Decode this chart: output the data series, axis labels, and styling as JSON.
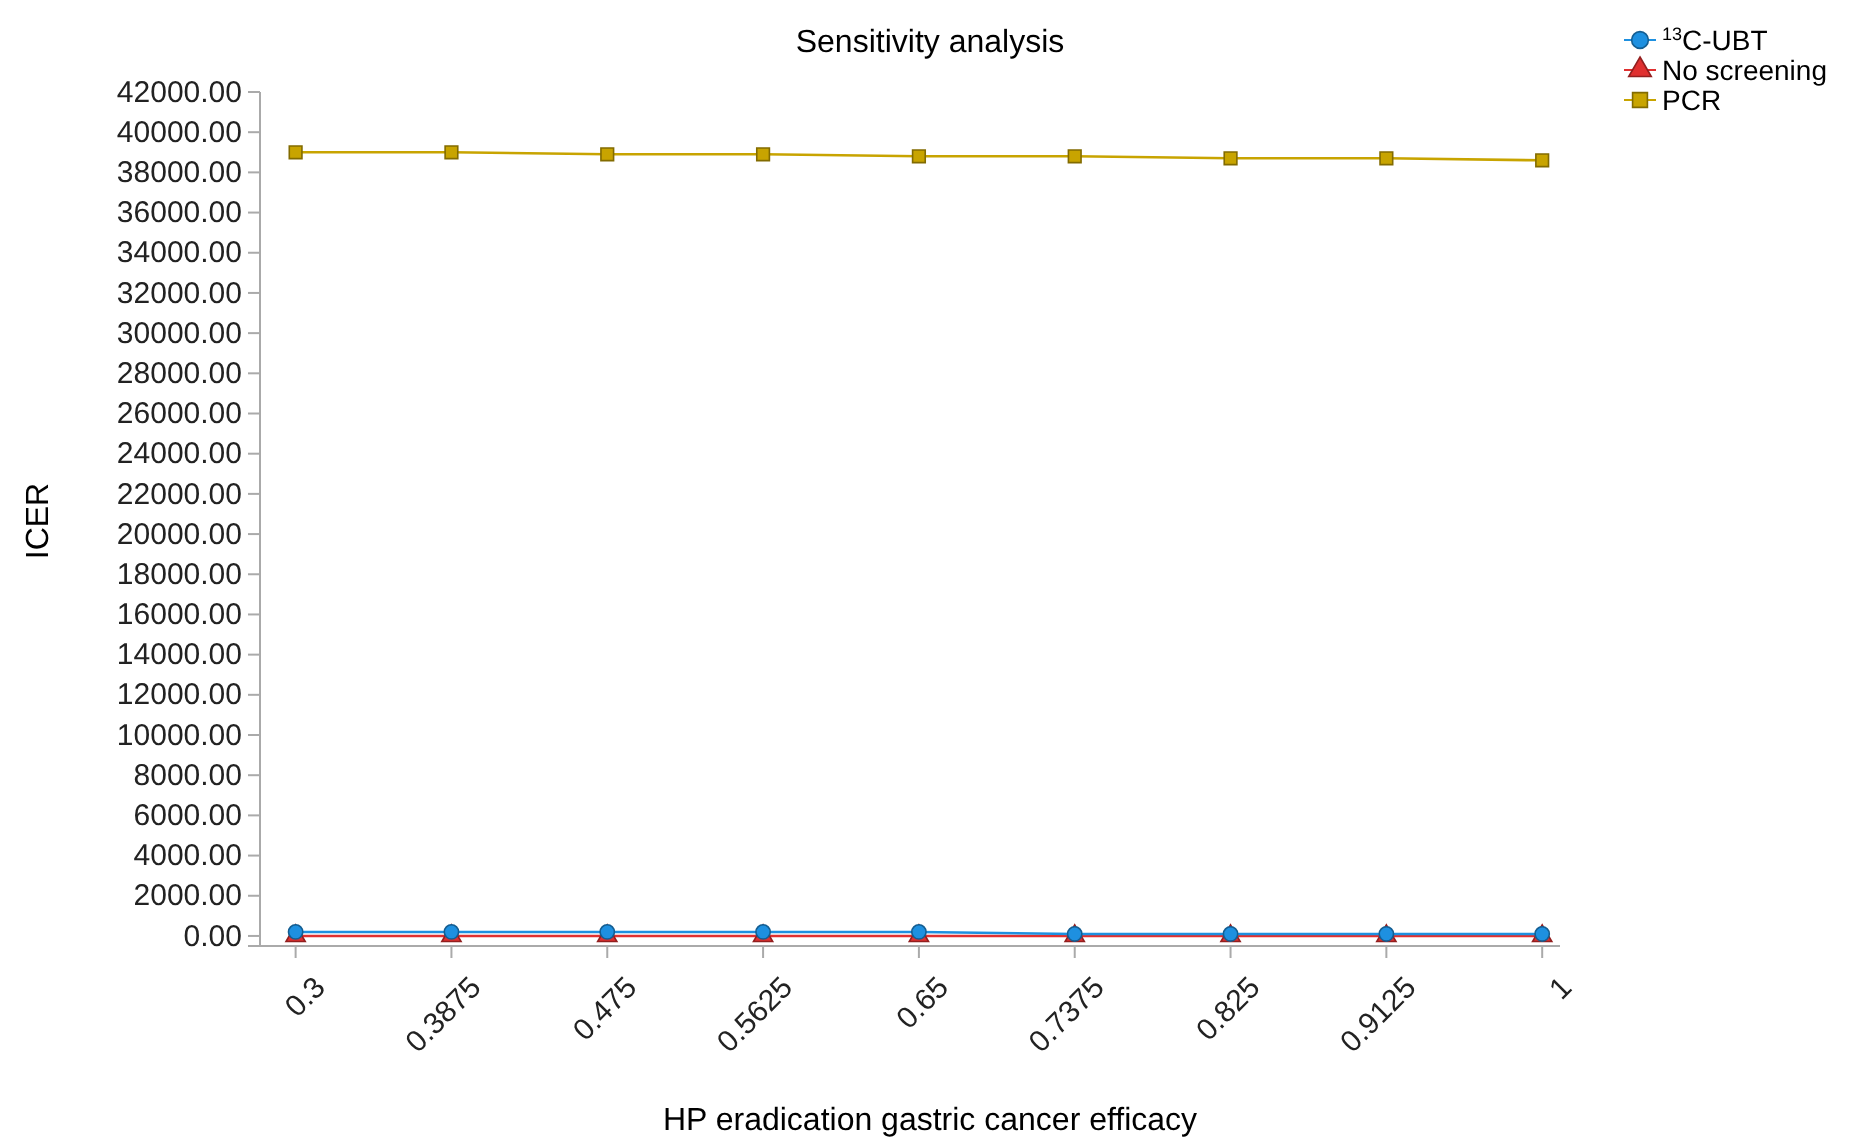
{
  "chart_data": {
    "type": "line",
    "title": "Sensitivity analysis",
    "xlabel": "HP eradication gastric cancer efficacy",
    "ylabel": "ICER",
    "x": [
      0.3,
      0.3875,
      0.475,
      0.5625,
      0.65,
      0.7375,
      0.825,
      0.9125,
      1
    ],
    "xticks": [
      0.3,
      0.3875,
      0.475,
      0.5625,
      0.65,
      0.7375,
      0.825,
      0.9125,
      1
    ],
    "xlim": [
      0.28,
      1.01
    ],
    "ylim": [
      -500,
      42000
    ],
    "yticks": [
      {
        "value": 0,
        "label": "0.00"
      },
      {
        "value": 2000,
        "label": "2000.00"
      },
      {
        "value": 4000,
        "label": "4000.00"
      },
      {
        "value": 6000,
        "label": "6000.00"
      },
      {
        "value": 8000,
        "label": "8000.00"
      },
      {
        "value": 10000,
        "label": "10000.00"
      },
      {
        "value": 12000,
        "label": "12000.00"
      },
      {
        "value": 14000,
        "label": "14000.00"
      },
      {
        "value": 16000,
        "label": "16000.00"
      },
      {
        "value": 18000,
        "label": "18000.00"
      },
      {
        "value": 20000,
        "label": "20000.00"
      },
      {
        "value": 22000,
        "label": "22000.00"
      },
      {
        "value": 24000,
        "label": "24000.00"
      },
      {
        "value": 26000,
        "label": "26000.00"
      },
      {
        "value": 28000,
        "label": "28000.00"
      },
      {
        "value": 30000,
        "label": "30000.00"
      },
      {
        "value": 32000,
        "label": "32000.00"
      },
      {
        "value": 34000,
        "label": "34000.00"
      },
      {
        "value": 36000,
        "label": "36000.00"
      },
      {
        "value": 38000,
        "label": "38000.00"
      },
      {
        "value": 40000,
        "label": "40000.00"
      },
      {
        "value": 42000,
        "label": "42000.00"
      }
    ],
    "legend": "top right",
    "grid": false,
    "series": [
      {
        "name": "$^{13}$C-UBT",
        "color": "#1e90e0",
        "marker": "circle",
        "values": [
          200,
          200,
          200,
          200,
          200,
          100,
          100,
          100,
          100
        ]
      },
      {
        "name": "No screening",
        "color": "#e03030",
        "marker": "triangle",
        "values": [
          0,
          0,
          0,
          0,
          0,
          0,
          0,
          0,
          0
        ]
      },
      {
        "name": "PCR",
        "color": "#c8a400",
        "marker": "square",
        "values": [
          39000,
          39000,
          38900,
          38900,
          38800,
          38800,
          38700,
          38700,
          38600
        ]
      }
    ]
  }
}
